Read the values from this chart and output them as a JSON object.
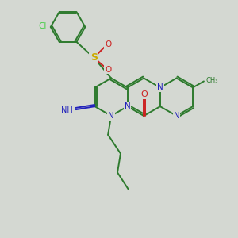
{
  "background_color": "#d4d8d2",
  "C": "#2d7a2d",
  "N": "#2222bb",
  "O": "#cc2222",
  "S": "#ccaa00",
  "Cl": "#44cc44",
  "lw": 1.4,
  "r": 24,
  "figsize": [
    3.0,
    3.0
  ],
  "dpi": 100
}
